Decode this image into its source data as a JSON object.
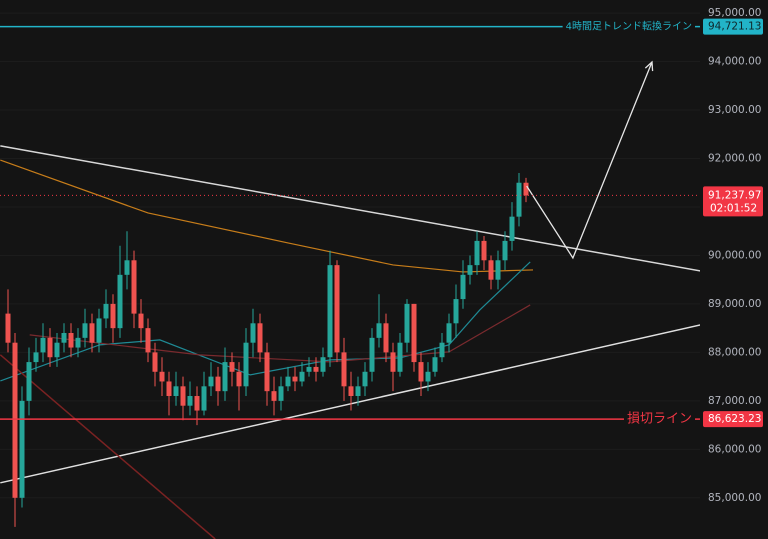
{
  "chart_data": {
    "type": "candlestick",
    "up_color": "#26a69a",
    "down_color": "#ef5350",
    "ylim": [
      84150,
      95270
    ],
    "yticks": [
      {
        "value": 85000,
        "label": "85,000.00"
      },
      {
        "value": 86000,
        "label": "86,000.00"
      },
      {
        "value": 87000,
        "label": "87,000.00"
      },
      {
        "value": 88000,
        "label": "88,000.00"
      },
      {
        "value": 89000,
        "label": "89,000.00"
      },
      {
        "value": 90000,
        "label": "90,000.00"
      },
      {
        "value": 91000,
        "label": "91,000.00"
      },
      {
        "value": 92000,
        "label": "92,000.00"
      },
      {
        "value": 93000,
        "label": "93,000.00"
      },
      {
        "value": 94000,
        "label": "94,000.00"
      },
      {
        "value": 95000,
        "label": "95,000.00"
      }
    ],
    "open": [
      88800,
      88200,
      85000,
      87000,
      87800,
      88000,
      88300,
      87900,
      88200,
      88400,
      88100,
      88300,
      88600,
      88200,
      88700,
      89000,
      88500,
      89600,
      89900,
      88800,
      88500,
      88000,
      87600,
      87400,
      87100,
      87300,
      86900,
      87100,
      86800,
      87300,
      87500,
      87200,
      87800,
      87600,
      87300,
      88200,
      88600,
      88000,
      87200,
      87000,
      87300,
      87500,
      87400,
      87600,
      87700,
      87600,
      87900,
      89800,
      88000,
      87300,
      87100,
      87300,
      87600,
      88300,
      88600,
      88000,
      87600,
      88200,
      89000,
      87800,
      87400,
      87600,
      87900,
      88200,
      88600,
      89100,
      89600,
      89800,
      90300,
      89900,
      89500,
      89900,
      90300,
      90800,
      91500
    ],
    "high": [
      89300,
      88400,
      87300,
      88100,
      88300,
      88600,
      88500,
      88400,
      88600,
      88600,
      88500,
      88900,
      88800,
      88900,
      89300,
      89200,
      90200,
      90500,
      90100,
      89100,
      88700,
      88200,
      87900,
      87600,
      87600,
      87500,
      87400,
      87300,
      87600,
      87800,
      87700,
      88100,
      88000,
      87800,
      88500,
      88900,
      88800,
      88200,
      87500,
      87500,
      87700,
      87700,
      87800,
      87900,
      87900,
      88100,
      90100,
      89900,
      88300,
      87600,
      87500,
      87800,
      88500,
      89200,
      88800,
      88200,
      88400,
      89100,
      89000,
      88000,
      87800,
      88100,
      88400,
      88800,
      89400,
      89900,
      90000,
      90500,
      90400,
      90000,
      90100,
      90500,
      91100,
      91700,
      91600
    ],
    "low": [
      88000,
      84400,
      84800,
      86700,
      87600,
      87800,
      87700,
      87700,
      88000,
      87900,
      87900,
      88100,
      88000,
      88000,
      88500,
      88200,
      88300,
      89300,
      88500,
      88200,
      87800,
      87300,
      87100,
      86700,
      86900,
      86600,
      86700,
      86500,
      86700,
      87100,
      86900,
      87000,
      87300,
      86800,
      87100,
      87900,
      87800,
      86900,
      86700,
      86800,
      87200,
      87200,
      87300,
      87500,
      87400,
      87500,
      87700,
      87800,
      87000,
      86800,
      86900,
      87100,
      87400,
      88100,
      87800,
      87200,
      87500,
      88000,
      87600,
      87100,
      87200,
      87500,
      87800,
      88000,
      88300,
      88900,
      89400,
      89600,
      89700,
      89300,
      89300,
      89700,
      90100,
      90600,
      91100
    ],
    "close": [
      88200,
      85000,
      87000,
      87800,
      88000,
      88300,
      87900,
      88200,
      88400,
      88100,
      88300,
      88600,
      88200,
      88700,
      89000,
      88500,
      89600,
      89900,
      88800,
      88500,
      88000,
      87600,
      87400,
      87100,
      87300,
      86900,
      87100,
      86800,
      87300,
      87500,
      87200,
      87800,
      87600,
      87300,
      88200,
      88600,
      88000,
      87200,
      87000,
      87300,
      87500,
      87400,
      87600,
      87700,
      87600,
      87900,
      89800,
      88000,
      87300,
      87100,
      87300,
      87600,
      88300,
      88600,
      88000,
      87600,
      88200,
      89000,
      87800,
      87400,
      87600,
      87900,
      88200,
      88600,
      89100,
      89600,
      89800,
      90300,
      89900,
      89500,
      89900,
      90300,
      90800,
      91500,
      91237.97
    ],
    "indicators": [
      {
        "color": "#c77d1a",
        "x": [
          -1.1,
          20,
          40,
          55,
          65,
          75
        ],
        "values": [
          91969,
          90876,
          90258,
          89804,
          89660,
          89701
        ]
      },
      {
        "color": "#1f8a95",
        "x": [
          -1.1,
          13.1,
          21.7,
          34.6,
          46,
          56,
          63,
          67.4,
          74.6
        ],
        "values": [
          87412,
          88155,
          88258,
          87536,
          87845,
          87887,
          88155,
          88876,
          89866
        ]
      },
      {
        "color": "#7a2a2e",
        "x": [
          3.1,
          27.4,
          46,
          63,
          74.6
        ],
        "values": [
          88361,
          87948,
          87804,
          88010,
          88979
        ]
      }
    ],
    "trendlines": [
      {
        "color": "#d8d8d8",
        "x": [
          -1.1,
          108.6
        ],
        "values": [
          92260,
          89430
        ]
      },
      {
        "color": "#e0e0e0",
        "x": [
          -1.1,
          98.9
        ],
        "values": [
          85309,
          88567
        ]
      },
      {
        "color": "#7a2222",
        "x": [
          -1.1,
          29.6
        ],
        "values": [
          87950,
          84150
        ]
      }
    ],
    "projection": {
      "color": "#e6e6e6",
      "x": [
        74.1,
        80.7,
        92
      ],
      "values": [
        91433,
        89948,
        93990
      ]
    },
    "levels": [
      {
        "name": "4時間足トレンド転換ライン",
        "value": 94721.13,
        "label": "94,721.13",
        "color": "#22b4c8"
      },
      {
        "name": "損切ライン",
        "value": 86623.23,
        "label": "86,623.23",
        "color": "#f23645"
      }
    ],
    "last_price": {
      "value": 91237.97,
      "label": "91,237.97",
      "countdown": "02:01:52",
      "color": "#f23645"
    }
  }
}
